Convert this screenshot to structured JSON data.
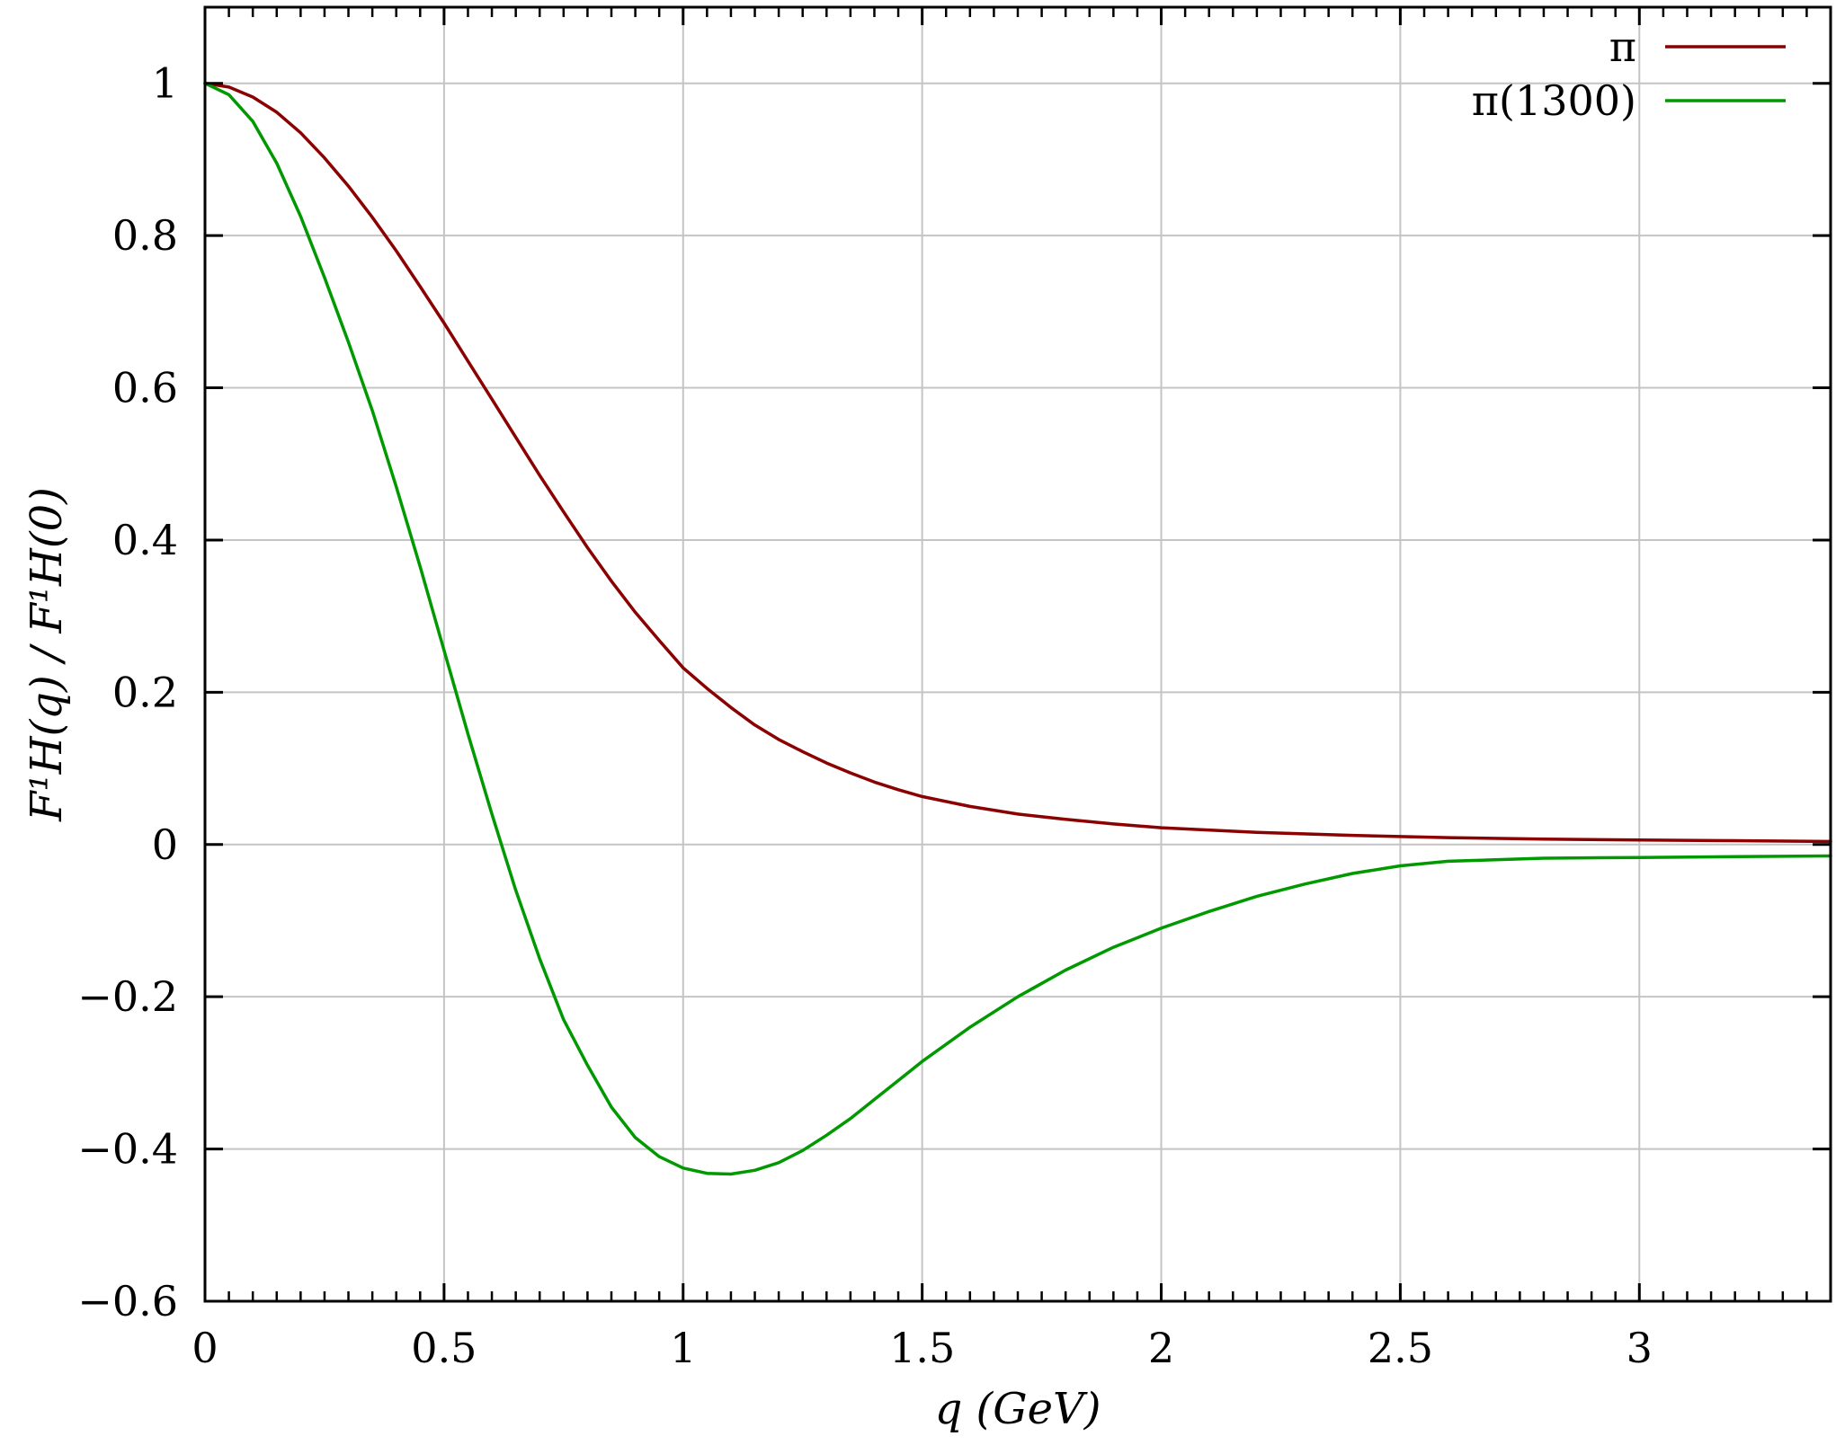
{
  "chart_data": {
    "type": "line",
    "xlabel": "q (GeV)",
    "ylabel": "F¹H(q) / F¹H(0)",
    "xlim": [
      0,
      3.4
    ],
    "ylim": [
      -0.6,
      1.1
    ],
    "grid": true,
    "legend_position": "top-right",
    "x_ticks": [
      0,
      0.5,
      1,
      1.5,
      2,
      2.5,
      3
    ],
    "x_tick_labels": [
      "0",
      "0.5",
      "1",
      "1.5",
      "2",
      "2.5",
      "3"
    ],
    "y_ticks": [
      -0.6,
      -0.4,
      -0.2,
      0,
      0.2,
      0.4,
      0.6,
      0.8,
      1
    ],
    "y_tick_labels": [
      "−0.6",
      "−0.4",
      "−0.2",
      "0",
      "0.2",
      "0.4",
      "0.6",
      "0.8",
      "1"
    ],
    "series": [
      {
        "name": "π",
        "color": "#8b0000",
        "x": [
          0,
          0.05,
          0.1,
          0.15,
          0.2,
          0.25,
          0.3,
          0.35,
          0.4,
          0.45,
          0.5,
          0.55,
          0.6,
          0.65,
          0.7,
          0.75,
          0.8,
          0.85,
          0.9,
          0.95,
          1.0,
          1.05,
          1.1,
          1.15,
          1.2,
          1.25,
          1.3,
          1.35,
          1.4,
          1.45,
          1.5,
          1.6,
          1.7,
          1.8,
          1.9,
          2.0,
          2.2,
          2.4,
          2.6,
          2.8,
          3.0,
          3.2,
          3.4
        ],
        "y": [
          1.0,
          0.995,
          0.982,
          0.962,
          0.935,
          0.902,
          0.865,
          0.824,
          0.78,
          0.733,
          0.685,
          0.635,
          0.585,
          0.535,
          0.485,
          0.437,
          0.39,
          0.346,
          0.305,
          0.268,
          0.232,
          0.205,
          0.18,
          0.157,
          0.138,
          0.122,
          0.107,
          0.094,
          0.082,
          0.072,
          0.063,
          0.05,
          0.04,
          0.033,
          0.027,
          0.022,
          0.016,
          0.012,
          0.009,
          0.007,
          0.006,
          0.005,
          0.004
        ]
      },
      {
        "name": "π(1300)",
        "color": "#009900",
        "x": [
          0,
          0.05,
          0.1,
          0.15,
          0.2,
          0.25,
          0.3,
          0.35,
          0.4,
          0.45,
          0.5,
          0.55,
          0.6,
          0.65,
          0.7,
          0.75,
          0.8,
          0.85,
          0.9,
          0.95,
          1.0,
          1.05,
          1.1,
          1.15,
          1.2,
          1.25,
          1.3,
          1.35,
          1.4,
          1.45,
          1.5,
          1.6,
          1.7,
          1.8,
          1.9,
          2.0,
          2.1,
          2.2,
          2.3,
          2.4,
          2.5,
          2.6,
          2.8,
          3.0,
          3.2,
          3.4
        ],
        "y": [
          1.0,
          0.985,
          0.95,
          0.895,
          0.825,
          0.745,
          0.66,
          0.57,
          0.47,
          0.365,
          0.255,
          0.145,
          0.04,
          -0.06,
          -0.15,
          -0.23,
          -0.29,
          -0.345,
          -0.385,
          -0.41,
          -0.425,
          -0.432,
          -0.433,
          -0.428,
          -0.418,
          -0.402,
          -0.382,
          -0.36,
          -0.335,
          -0.31,
          -0.285,
          -0.24,
          -0.2,
          -0.165,
          -0.135,
          -0.11,
          -0.088,
          -0.068,
          -0.052,
          -0.038,
          -0.028,
          -0.022,
          -0.018,
          -0.017,
          -0.016,
          -0.015
        ]
      }
    ]
  }
}
